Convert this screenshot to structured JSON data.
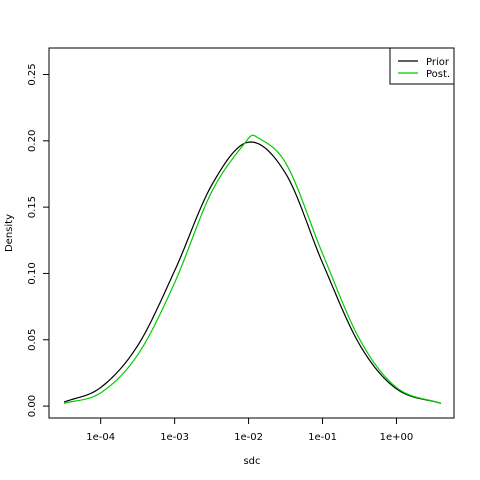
{
  "chart_data": {
    "type": "line",
    "x_scale": "log10",
    "xlabel": "sdc",
    "ylabel": "Density",
    "xlim": [
      2e-05,
      6.0
    ],
    "ylim": [
      -0.009,
      0.27
    ],
    "x_ticks": [
      {
        "value": 0.0001,
        "label": "1e-04"
      },
      {
        "value": 0.001,
        "label": "1e-03"
      },
      {
        "value": 0.01,
        "label": "1e-02"
      },
      {
        "value": 0.1,
        "label": "1e-01"
      },
      {
        "value": 1,
        "label": "1e+00"
      }
    ],
    "y_ticks": [
      {
        "value": 0.0,
        "label": "0.00"
      },
      {
        "value": 0.05,
        "label": "0.05"
      },
      {
        "value": 0.1,
        "label": "0.10"
      },
      {
        "value": 0.15,
        "label": "0.15"
      },
      {
        "value": 0.2,
        "label": "0.20"
      },
      {
        "value": 0.25,
        "label": "0.25"
      }
    ],
    "grid": false,
    "legend_position": "top-right",
    "series": [
      {
        "name": "Prior",
        "color": "#000000",
        "x": [
          3.2e-05,
          0.0001,
          0.00032,
          0.001,
          0.0032,
          0.01,
          0.032,
          0.1,
          0.32,
          1.0,
          4.0
        ],
        "y": [
          0.003,
          0.014,
          0.046,
          0.102,
          0.167,
          0.199,
          0.175,
          0.108,
          0.046,
          0.013,
          0.002
        ]
      },
      {
        "name": "Post.",
        "color": "#00cd00",
        "x": [
          3.2e-05,
          0.0001,
          0.00032,
          0.001,
          0.0032,
          0.01,
          0.012,
          0.032,
          0.1,
          0.32,
          1.0,
          4.0
        ],
        "y": [
          0.002,
          0.01,
          0.039,
          0.093,
          0.162,
          0.202,
          0.204,
          0.183,
          0.115,
          0.05,
          0.014,
          0.002
        ]
      }
    ]
  }
}
